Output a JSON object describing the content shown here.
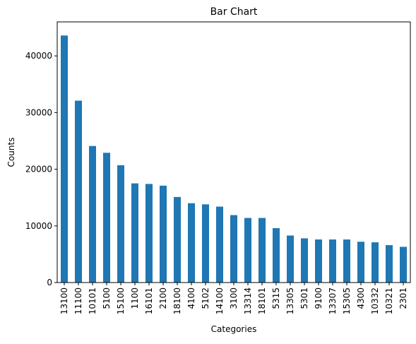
{
  "chart_data": {
    "type": "bar",
    "title": "Bar Chart",
    "xlabel": "Categories",
    "ylabel": "Counts",
    "ylim": [
      0,
      46000
    ],
    "yticks": [
      0,
      10000,
      20000,
      30000,
      40000
    ],
    "bar_color": "#1f77b4",
    "grid": false,
    "categories": [
      "13100",
      "11100",
      "10101",
      "5100",
      "15100",
      "1100",
      "16101",
      "2100",
      "18100",
      "4100",
      "5102",
      "14100",
      "3100",
      "13314",
      "18101",
      "5315",
      "13305",
      "5301",
      "9100",
      "13307",
      "15305",
      "4300",
      "10332",
      "10321",
      "2301"
    ],
    "values": [
      43600,
      32100,
      24100,
      22900,
      20700,
      17500,
      17400,
      17100,
      15100,
      14000,
      13800,
      13400,
      11900,
      11400,
      11400,
      9600,
      8300,
      7800,
      7600,
      7600,
      7600,
      7200,
      7100,
      6600,
      6300
    ]
  }
}
